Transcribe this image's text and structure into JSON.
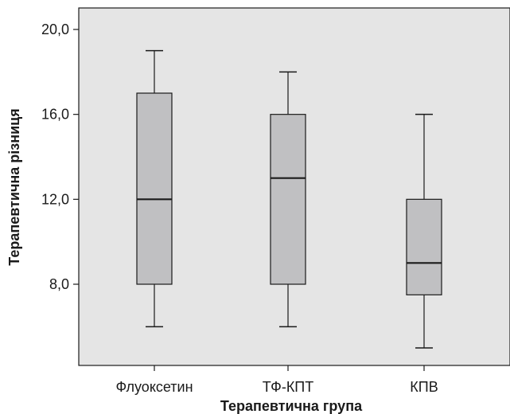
{
  "chart_data": {
    "type": "box",
    "xlabel": "Терапевтична група",
    "ylabel": "Терапевтична різниця",
    "ylim": [
      4.0,
      20.0
    ],
    "yticks": [
      8.0,
      12.0,
      16.0,
      20.0
    ],
    "ytick_labels": [
      "8,0",
      "12,0",
      "16,0",
      "20,0"
    ],
    "categories": [
      "Флуоксетин",
      "ТФ-КПТ",
      "КПВ"
    ],
    "boxes": [
      {
        "category": "Флуоксетин",
        "min": 6,
        "q1": 8,
        "median": 12,
        "q3": 17,
        "max": 19
      },
      {
        "category": "ТФ-КПТ",
        "min": 6,
        "q1": 8,
        "median": 13,
        "q3": 16,
        "max": 18
      },
      {
        "category": "КПВ",
        "min": 5,
        "q1": 7.5,
        "median": 9,
        "q3": 12,
        "max": 16
      }
    ],
    "grid": false,
    "colors": {
      "plot_background": "#e5e5e5",
      "box_fill": "#c0c0c2",
      "stroke": "#1a1a1a"
    }
  }
}
